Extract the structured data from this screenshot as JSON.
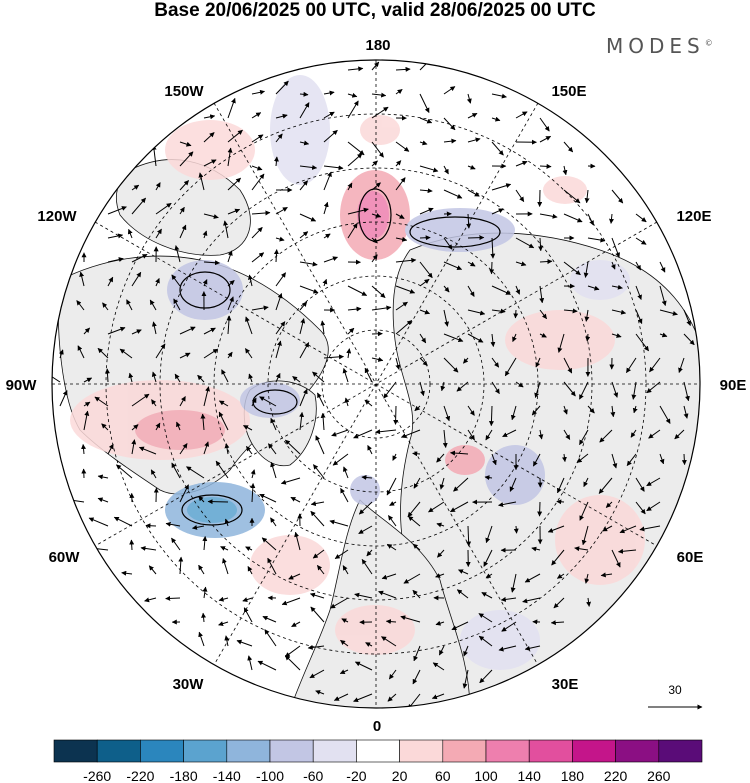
{
  "title": "Base 20/06/2025 00 UTC, valid 28/06/2025 00 UTC",
  "brand": "MODES",
  "brand_mark": "©",
  "longitude_labels": {
    "deg180": "180",
    "w150": "150W",
    "e150": "150E",
    "w120": "120W",
    "e120": "120E",
    "w90": "90W",
    "e90": "90E",
    "w60": "60W",
    "e60": "60E",
    "w30": "30W",
    "e30": "30E",
    "deg0": "0"
  },
  "reference_vector": "30",
  "colorbar": {
    "ticks": [
      "-260",
      "-220",
      "-180",
      "-140",
      "-100",
      "-60",
      "-20",
      "20",
      "60",
      "100",
      "140",
      "180",
      "220",
      "260"
    ],
    "colors": [
      "#0c3350",
      "#0e5f8a",
      "#2b86bd",
      "#5ba3cf",
      "#8fb5dc",
      "#c2c6e4",
      "#e2e1f1",
      "#ffffff",
      "#fbd9d9",
      "#f4aab4",
      "#ee7fae",
      "#e24f9e",
      "#c4158a",
      "#8b0f83",
      "#5a0c78"
    ]
  },
  "colors": {
    "land": "#ececec",
    "ocean": "#ffffff",
    "grid": "#000000",
    "coast": "#111111"
  }
}
